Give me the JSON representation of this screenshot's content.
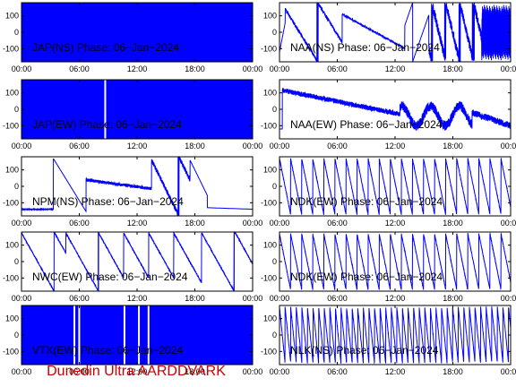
{
  "footer": "Dunedin Ultra AARDDVARK",
  "colors": {
    "trace": "#0000ff",
    "footer": "#cc0000",
    "axes": "#000000"
  },
  "chart_data": {
    "type": "line",
    "layout": "5x2 grid of phase-vs-time panels",
    "x_ticks": [
      "00:00",
      "06:00",
      "12:00",
      "18:00",
      "00:00"
    ],
    "y_ticks": [
      100,
      0,
      -100
    ],
    "xlim_hours": [
      0,
      24
    ],
    "ylim": [
      -180,
      180
    ],
    "panels": [
      {
        "title": "JAP(NS) Phase: 06−Jan−2024",
        "pattern": "filled",
        "gaps": []
      },
      {
        "title": "NAA(NS) Phase: 06−Jan−2024",
        "pattern": "naa_ns"
      },
      {
        "title": "JAP(EW) Phase: 06−Jan−2024",
        "pattern": "filled",
        "gaps": [
          8.6
        ]
      },
      {
        "title": "NAA(EW) Phase: 06−Jan−2024",
        "pattern": "naa_ew"
      },
      {
        "title": "NPM(NS) Phase: 06−Jan−2024",
        "pattern": "npm_ns"
      },
      {
        "title": "NDK(EW) Phase: 06−Jan−2024",
        "pattern": "sawtooth",
        "period_hours": 1.15
      },
      {
        "title": "NWC(EW) Phase: 06−Jan−2024",
        "pattern": "nwc_ew"
      },
      {
        "title": "NDK(EW) Phase: 06−Jan−2024",
        "pattern": "sawtooth",
        "period_hours": 1.15
      },
      {
        "title": "VTX(EW) Phase: 06−Jan−2024",
        "pattern": "filled",
        "gaps": [
          5.4,
          5.9,
          10.6,
          12.1,
          13.1
        ]
      },
      {
        "title": "NLK(NS) Phase: 06−Jan−2024",
        "pattern": "sawtooth",
        "period_hours": 0.58
      }
    ]
  }
}
